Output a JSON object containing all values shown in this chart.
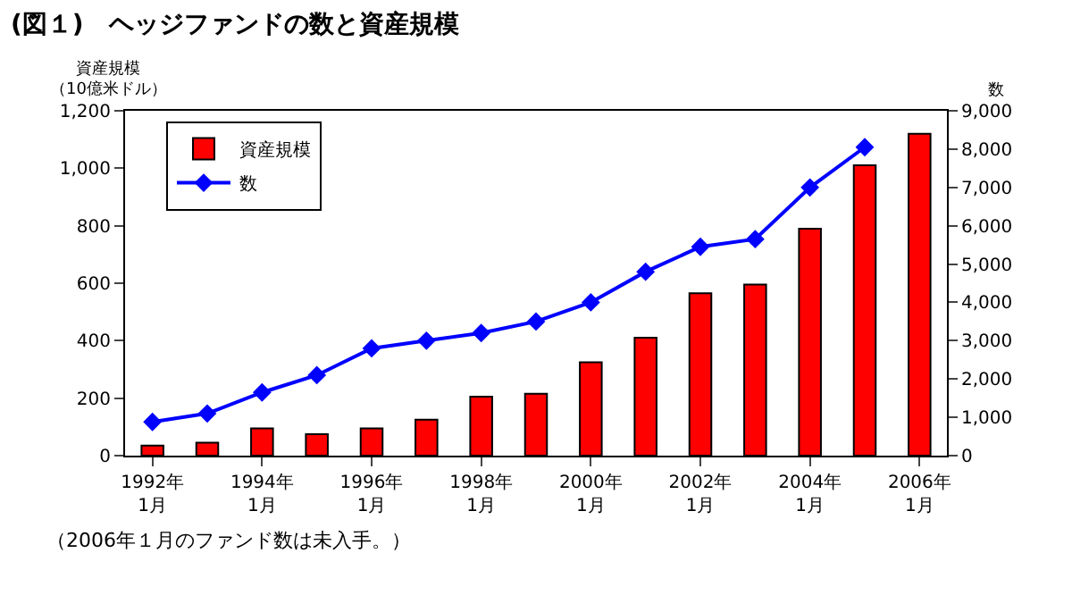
{
  "chart_data": {
    "type": "bar",
    "title": "(図１)　ヘッジファンドの数と資産規模",
    "ylabel": "資産規模（10億米ドル）",
    "y2label": "数",
    "annotations": [
      "（2006年１月のファンド数は未入手。）"
    ],
    "categories": [
      "1992年\n1月",
      null,
      "1994年\n1月",
      null,
      "1996年\n1月",
      null,
      "1998年\n1月",
      null,
      "2000年\n1月",
      null,
      "2002年\n1月",
      null,
      "2004年\n1月",
      null,
      "2006年\n1月"
    ],
    "series": [
      {
        "name": "資産規模",
        "color": "#ff0000",
        "values": [
          35,
          45,
          95,
          75,
          95,
          125,
          205,
          215,
          325,
          410,
          565,
          595,
          790,
          1010,
          1120
        ]
      },
      {
        "name": "数",
        "type": "line",
        "axis": "y2",
        "color": "#0000ff",
        "marker": "diamond",
        "values": [
          880,
          1100,
          1650,
          2100,
          2800,
          3000,
          3200,
          3500,
          4000,
          4800,
          5450,
          5650,
          7000,
          8050,
          null
        ]
      }
    ],
    "ylim": [
      0,
      1200
    ],
    "yticks": [
      0,
      200,
      400,
      600,
      800,
      {
        "value": 1000,
        "label": "1,000"
      },
      {
        "value": 1200,
        "label": "1,200"
      }
    ],
    "y2lim": [
      0,
      9000
    ],
    "y2ticks": [
      0,
      {
        "value": 1000,
        "label": "1,000"
      },
      {
        "value": 2000,
        "label": "2,000"
      },
      {
        "value": 3000,
        "label": "3,000"
      },
      {
        "value": 4000,
        "label": "4,000"
      },
      {
        "value": 5000,
        "label": "5,000"
      },
      {
        "value": 6000,
        "label": "6,000"
      },
      {
        "value": 7000,
        "label": "7,000"
      },
      {
        "value": 8000,
        "label": "8,000"
      },
      {
        "value": 9000,
        "label": "9,000"
      }
    ],
    "legend": "top left"
  }
}
